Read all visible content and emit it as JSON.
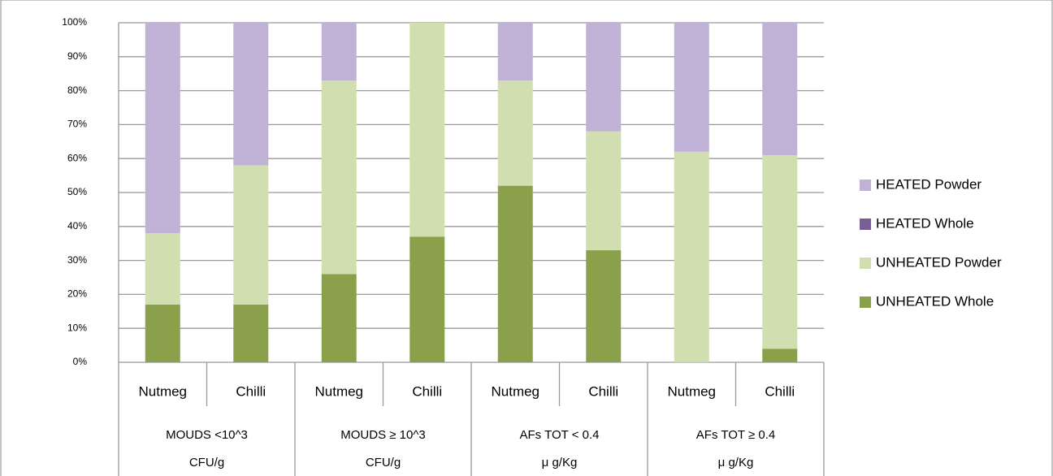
{
  "chart_data": {
    "type": "stacked_bar",
    "categories": [
      "Nutmeg",
      "Chilli",
      "Nutmeg",
      "Chilli",
      "Nutmeg",
      "Chilli",
      "Nutmeg",
      "Chilli"
    ],
    "groups": [
      [
        "MOUDS <10^3",
        "CFU/g"
      ],
      [
        "MOUDS ≥ 10^3",
        "CFU/g"
      ],
      [
        "AFs TOT < 0.4",
        "μ  g/Kg"
      ],
      [
        "AFs TOT ≥ 0.4",
        "μ  g/Kg"
      ]
    ],
    "series": [
      {
        "name": "UNHEATED Whole",
        "color": "#8aa04a",
        "values": [
          17,
          17,
          26,
          37,
          52,
          33,
          0,
          4
        ]
      },
      {
        "name": "UNHEATED Powder",
        "color": "#d0deb0",
        "values": [
          21,
          41,
          57,
          63,
          31,
          35,
          62,
          57
        ]
      },
      {
        "name": "HEATED Whole",
        "color": "#7a5f96",
        "values": [
          0,
          0,
          0,
          0,
          0,
          0,
          0,
          0
        ]
      },
      {
        "name": "HEATED Powder",
        "color": "#c0b2d6",
        "values": [
          62,
          42,
          17,
          0,
          17,
          32,
          38,
          39
        ]
      }
    ],
    "ylim": [
      0,
      100
    ],
    "yticks": [
      {
        "value": 0,
        "label": "0%"
      },
      {
        "value": 10,
        "label": "10%"
      },
      {
        "value": 20,
        "label": "20%"
      },
      {
        "value": 30,
        "label": "30%"
      },
      {
        "value": 40,
        "label": "40%"
      },
      {
        "value": 50,
        "label": "50%"
      },
      {
        "value": 60,
        "label": "60%"
      },
      {
        "value": 70,
        "label": "70%"
      },
      {
        "value": 80,
        "label": "80%"
      },
      {
        "value": 90,
        "label": "90%"
      },
      {
        "value": 100,
        "label": "100%"
      }
    ],
    "grid": true,
    "legend": "right"
  }
}
